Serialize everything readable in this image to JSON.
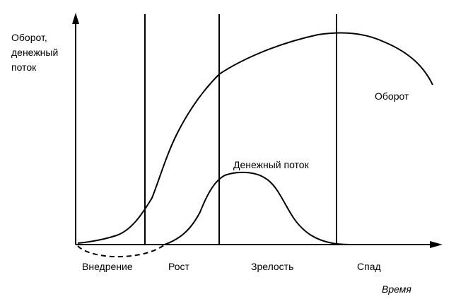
{
  "chart_data": {
    "type": "line",
    "y_axis_label_lines": [
      "Оборот,",
      "денежный",
      "поток"
    ],
    "x_axis_label": "Время",
    "stages": [
      "Внедрение",
      "Рост",
      "Зрелость",
      "Спад"
    ],
    "series": [
      {
        "name": "Оборот"
      },
      {
        "name": "Денежный поток"
      }
    ],
    "grid": false
  }
}
